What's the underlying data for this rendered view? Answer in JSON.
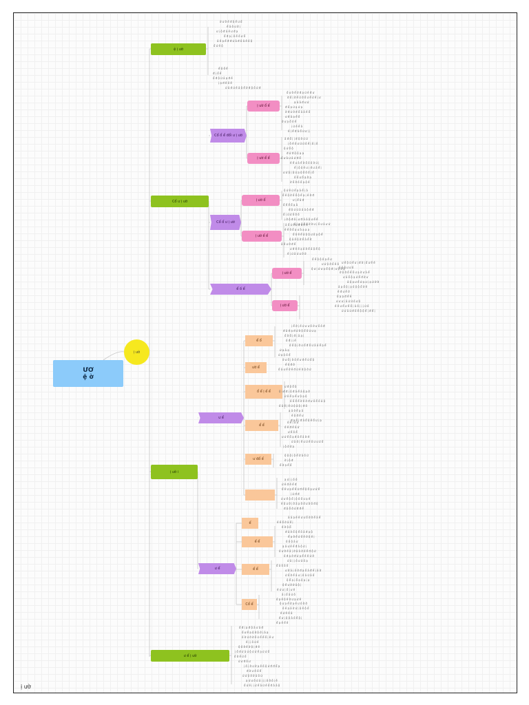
{
  "colors": {
    "green": "#8ec21f",
    "purple": "#c08be8",
    "pink": "#f28ec3",
    "orange": "#fac79a",
    "root": "#8ccbfa",
    "center": "#f6e81f"
  },
  "root": {
    "line1": "ƯƠ",
    "line2": "ệ    ờ"
  },
  "center": "ị ườ",
  "branches": [
    {
      "label": "ệ ị ườ"
    },
    {
      "label": "Cổ  ư  ị ườ"
    },
    {
      "label": "ị ườ  i"
    },
    {
      "label": "ư  ể  ị ườ"
    }
  ],
  "sub": {
    "p1": "Cổ  ổ ể  đổi  ư  ị ườ",
    "p2": "Cổ  ổ  ư  ị ườ",
    "p3": "ể  ố   ể",
    "p4": "ư  ể",
    "p5": "ư  ể"
  },
  "pinks": [
    "ị ườ  ổ ể",
    "ị ườ  ể ể",
    "ị ườ  ổ",
    "ị ườ  ể ể",
    "ị ườ  ể",
    "ị ườ  ể"
  ],
  "oranges": [
    "ể  ổ",
    "ườ  ể",
    "ổ  ể  ị  ể ể",
    "ể  ể",
    "ư  đổ  ể",
    "",
    "ể",
    "ể  ể",
    "ể  ể",
    "Cổ  ể"
  ],
  "footer": "ị ườ"
}
